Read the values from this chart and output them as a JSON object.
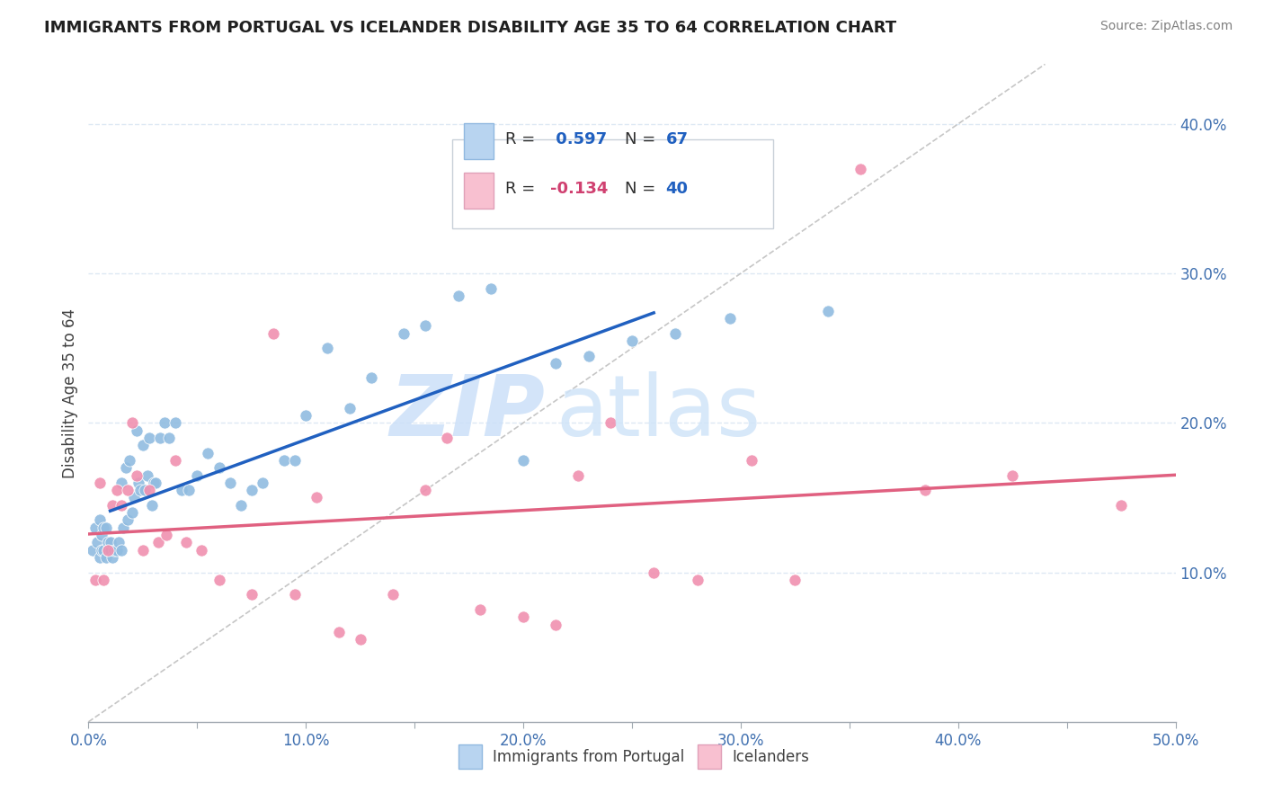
{
  "title": "IMMIGRANTS FROM PORTUGAL VS ICELANDER DISABILITY AGE 35 TO 64 CORRELATION CHART",
  "source": "Source: ZipAtlas.com",
  "ylabel": "Disability Age 35 to 64",
  "xlim": [
    0.0,
    0.5
  ],
  "ylim": [
    0.0,
    0.44
  ],
  "xticklabels": [
    "0.0%",
    "",
    "10.0%",
    "",
    "20.0%",
    "",
    "30.0%",
    "",
    "40.0%",
    "",
    "50.0%"
  ],
  "xtick_positions": [
    0.0,
    0.05,
    0.1,
    0.15,
    0.2,
    0.25,
    0.3,
    0.35,
    0.4,
    0.45,
    0.5
  ],
  "yticks_right": [
    0.1,
    0.2,
    0.3,
    0.4
  ],
  "ytick_right_labels": [
    "10.0%",
    "20.0%",
    "30.0%",
    "40.0%"
  ],
  "blue_R": 0.597,
  "blue_N": 67,
  "pink_R": -0.134,
  "pink_N": 40,
  "blue_dot_color": "#90bce0",
  "blue_line_color": "#2060c0",
  "pink_dot_color": "#f090b0",
  "pink_line_color": "#e06080",
  "blue_legend_color": "#b8d4f0",
  "pink_legend_color": "#f8c0d0",
  "watermark_color": "#cce0f8",
  "diagonal_color": "#b8b8b8",
  "grid_color": "#dde8f4",
  "background_color": "#ffffff",
  "legend_blue_label": "Immigrants from Portugal",
  "legend_pink_label": "Icelanders",
  "blue_points_x": [
    0.002,
    0.003,
    0.004,
    0.005,
    0.005,
    0.006,
    0.006,
    0.007,
    0.007,
    0.008,
    0.008,
    0.009,
    0.009,
    0.01,
    0.01,
    0.011,
    0.012,
    0.013,
    0.014,
    0.015,
    0.015,
    0.016,
    0.017,
    0.018,
    0.019,
    0.02,
    0.021,
    0.022,
    0.023,
    0.024,
    0.025,
    0.026,
    0.027,
    0.028,
    0.029,
    0.03,
    0.031,
    0.033,
    0.035,
    0.037,
    0.04,
    0.043,
    0.046,
    0.05,
    0.055,
    0.06,
    0.065,
    0.07,
    0.075,
    0.08,
    0.09,
    0.095,
    0.1,
    0.11,
    0.12,
    0.13,
    0.145,
    0.155,
    0.17,
    0.185,
    0.2,
    0.215,
    0.23,
    0.25,
    0.27,
    0.295,
    0.34
  ],
  "blue_points_y": [
    0.115,
    0.13,
    0.12,
    0.11,
    0.135,
    0.115,
    0.125,
    0.115,
    0.13,
    0.11,
    0.13,
    0.12,
    0.115,
    0.115,
    0.12,
    0.11,
    0.115,
    0.115,
    0.12,
    0.115,
    0.16,
    0.13,
    0.17,
    0.135,
    0.175,
    0.14,
    0.15,
    0.195,
    0.16,
    0.155,
    0.185,
    0.155,
    0.165,
    0.19,
    0.145,
    0.16,
    0.16,
    0.19,
    0.2,
    0.19,
    0.2,
    0.155,
    0.155,
    0.165,
    0.18,
    0.17,
    0.16,
    0.145,
    0.155,
    0.16,
    0.175,
    0.175,
    0.205,
    0.25,
    0.21,
    0.23,
    0.26,
    0.265,
    0.285,
    0.29,
    0.175,
    0.24,
    0.245,
    0.255,
    0.26,
    0.27,
    0.275
  ],
  "pink_points_x": [
    0.003,
    0.005,
    0.007,
    0.009,
    0.011,
    0.013,
    0.015,
    0.018,
    0.02,
    0.022,
    0.025,
    0.028,
    0.032,
    0.036,
    0.04,
    0.045,
    0.052,
    0.06,
    0.075,
    0.085,
    0.095,
    0.105,
    0.115,
    0.125,
    0.14,
    0.155,
    0.165,
    0.18,
    0.2,
    0.215,
    0.225,
    0.24,
    0.26,
    0.28,
    0.305,
    0.325,
    0.355,
    0.385,
    0.425,
    0.475
  ],
  "pink_points_y": [
    0.095,
    0.16,
    0.095,
    0.115,
    0.145,
    0.155,
    0.145,
    0.155,
    0.2,
    0.165,
    0.115,
    0.155,
    0.12,
    0.125,
    0.175,
    0.12,
    0.115,
    0.095,
    0.085,
    0.26,
    0.085,
    0.15,
    0.06,
    0.055,
    0.085,
    0.155,
    0.19,
    0.075,
    0.07,
    0.065,
    0.165,
    0.2,
    0.1,
    0.095,
    0.175,
    0.095,
    0.37,
    0.155,
    0.165,
    0.145
  ]
}
